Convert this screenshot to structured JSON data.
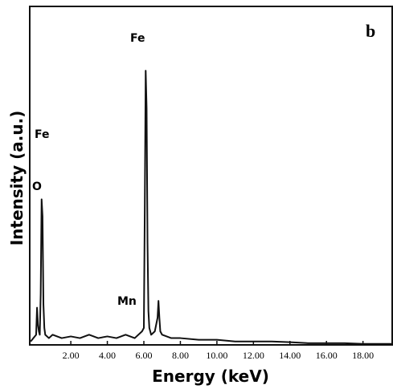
{
  "chart_data": {
    "type": "line",
    "panel_label": "b",
    "x_label": "Energy (keV)",
    "y_label": "Intensity (a.u.)",
    "annotations": [
      "Fe",
      "Fe",
      "O",
      "Mn"
    ],
    "x": [
      -0.2,
      0.1,
      0.15,
      0.2,
      0.25,
      0.3,
      0.35,
      0.4,
      0.45,
      0.5,
      0.55,
      0.6,
      0.8,
      1.0,
      1.5,
      2.0,
      2.5,
      3.0,
      3.5,
      4.0,
      4.5,
      5.0,
      5.5,
      5.9,
      6.0,
      6.05,
      6.1,
      6.15,
      6.2,
      6.25,
      6.3,
      6.4,
      6.6,
      6.75,
      6.8,
      6.85,
      6.9,
      7.0,
      7.5,
      8.0,
      9.0,
      10.0,
      11.0,
      12.0,
      13.0,
      14.0,
      15.0,
      16.0,
      17.0,
      18.0,
      19.0,
      19.6
    ],
    "series": [
      {
        "color": "#111111",
        "values": [
          1,
          3,
          11,
          6,
          4,
          3,
          15,
          43,
          38,
          12,
          5,
          3,
          2,
          3,
          2,
          2.5,
          2,
          3,
          2,
          2.5,
          2,
          3,
          2,
          4,
          5,
          40,
          81,
          70,
          30,
          10,
          5,
          3,
          4,
          8,
          13,
          8,
          4,
          3,
          2,
          2,
          1.5,
          1.5,
          1,
          1,
          1,
          0.8,
          0.5,
          0.5,
          0.5,
          0.3,
          0.3,
          0.3
        ]
      }
    ],
    "xlim": [
      -0.25,
      19.6
    ],
    "ylim": [
      0,
      100
    ],
    "xticks": [
      {
        "value": 2,
        "label": "2.00"
      },
      {
        "value": 4,
        "label": "4.00"
      },
      {
        "value": 6,
        "label": "6.00"
      },
      {
        "value": 8,
        "label": "8.00"
      },
      {
        "value": 10,
        "label": "10.00"
      },
      {
        "value": 12,
        "label": "12.00"
      },
      {
        "value": 14,
        "label": "14.00"
      },
      {
        "value": 16,
        "label": "16.00"
      },
      {
        "value": 18,
        "label": "18.00"
      }
    ]
  }
}
